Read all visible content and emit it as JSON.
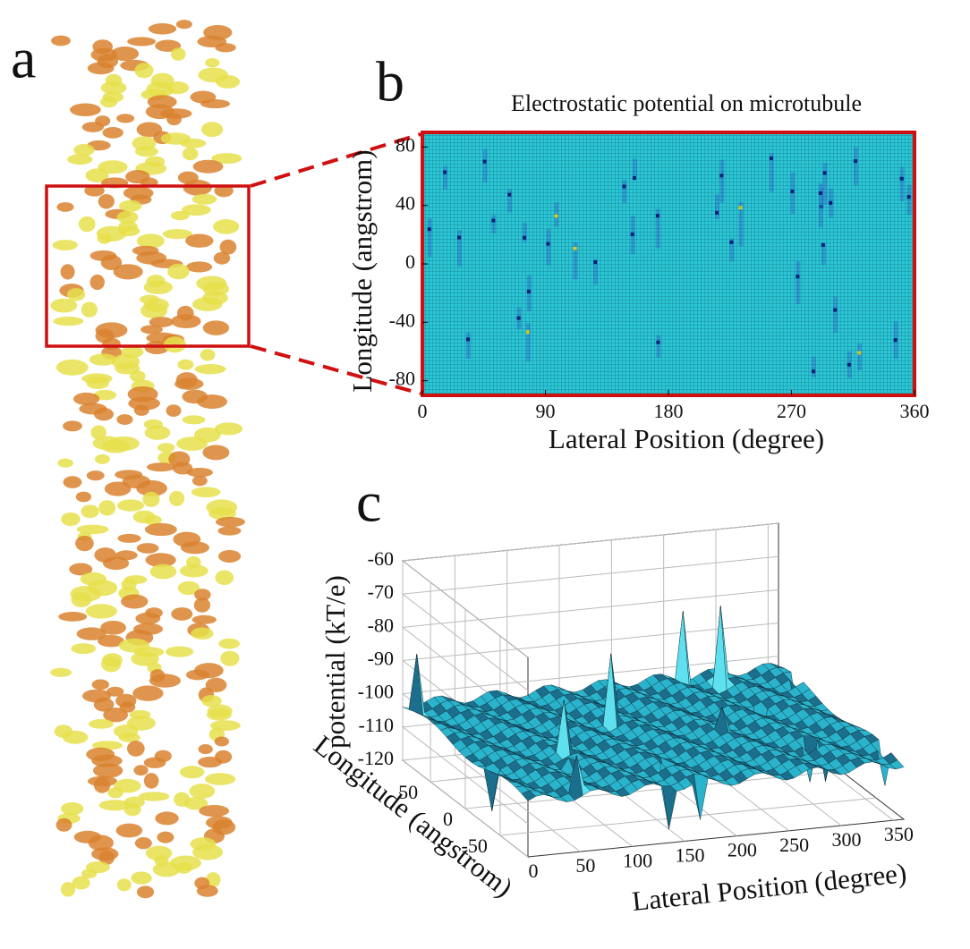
{
  "panel_labels": [
    "a",
    "b",
    "c"
  ],
  "chart_data": [
    {
      "type": "heatmap",
      "title": "Electrostatic potential on microtubule",
      "xlabel": "Lateral Position (degree)",
      "ylabel": "Longitude (angstrom)",
      "xlim": [
        0,
        360
      ],
      "ylim": [
        -90,
        90
      ],
      "xticks": [
        0,
        90,
        180,
        270,
        360
      ],
      "yticks": [
        -80,
        -40,
        0,
        40,
        80
      ]
    },
    {
      "type": "surface",
      "xlabel": "Lateral Position (degree)",
      "ylabel": "Longitude (angstrom)",
      "zlabel": "potential (kT/e)",
      "xlim": [
        0,
        360
      ],
      "ylim": [
        -90,
        90
      ],
      "zlim": [
        -120,
        -60
      ],
      "xticks": [
        0,
        50,
        100,
        150,
        200,
        250,
        300,
        350
      ],
      "yticks": [
        -50,
        0,
        50
      ],
      "zticks": [
        -60,
        -70,
        -80,
        -90,
        -100,
        -110,
        -120
      ],
      "grid": true
    }
  ]
}
